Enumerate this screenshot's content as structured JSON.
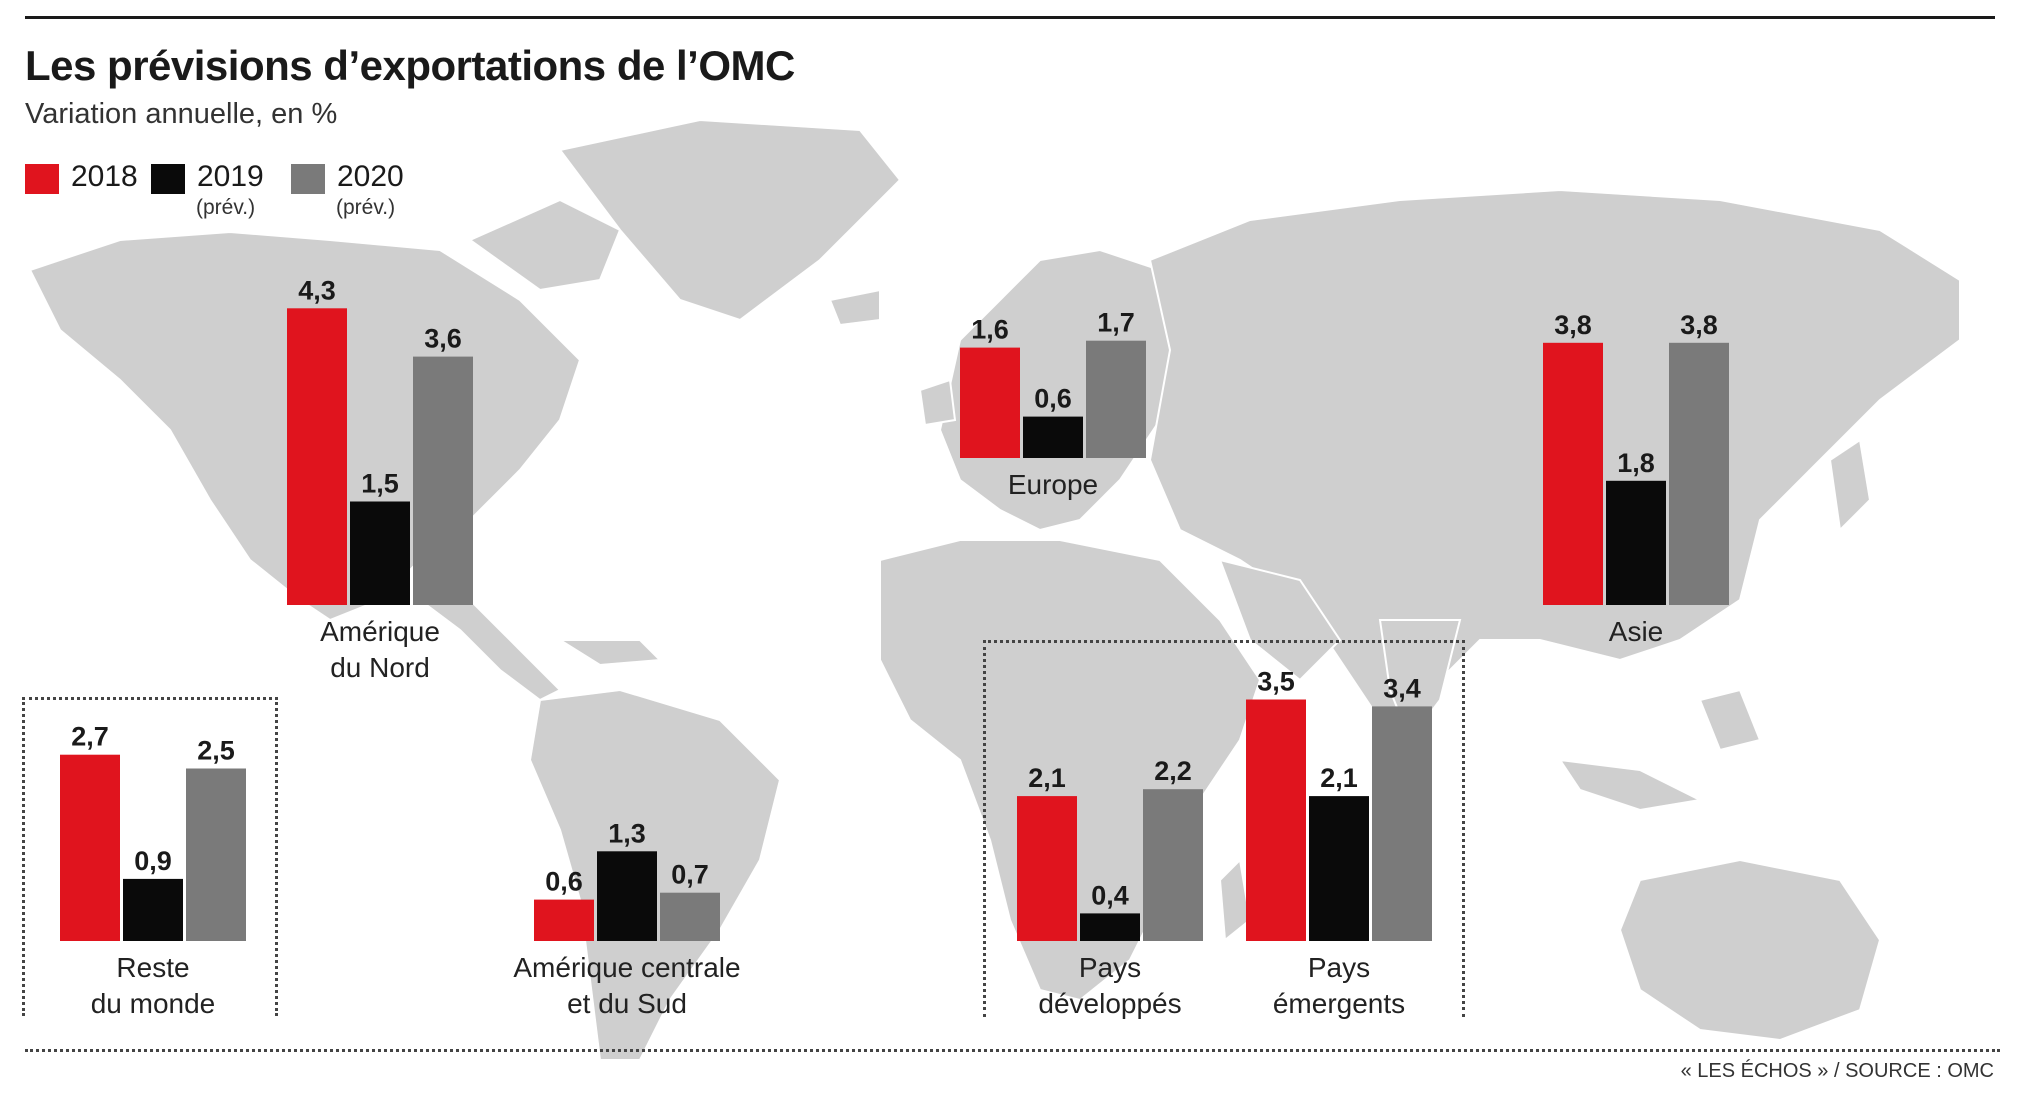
{
  "title": "Les prévisions d’exportations de l’OMC",
  "subtitle": "Variation annuelle, en %",
  "legend": [
    {
      "year": "2018",
      "note": "",
      "color": "#e0141e"
    },
    {
      "year": "2019",
      "note": "(prév.)",
      "color": "#0a0a0a"
    },
    {
      "year": "2020",
      "note": "(prév.)",
      "color": "#7a7a7a"
    }
  ],
  "source": "« LES ÉCHOS » / SOURCE : OMC",
  "chart_data": {
    "type": "bar",
    "series": [
      {
        "name": "2018",
        "color": "#e0141e"
      },
      {
        "name": "2019 (prév.)",
        "color": "#0a0a0a"
      },
      {
        "name": "2020 (prév.)",
        "color": "#7a7a7a"
      }
    ],
    "groups": [
      {
        "label": [
          "Amérique",
          "du Nord"
        ],
        "values": [
          4.3,
          1.5,
          3.6
        ],
        "labels": [
          "4,3",
          "1,5",
          "3,6"
        ]
      },
      {
        "label": [
          "Europe"
        ],
        "values": [
          1.6,
          0.6,
          1.7
        ],
        "labels": [
          "1,6",
          "0,6",
          "1,7"
        ]
      },
      {
        "label": [
          "Asie"
        ],
        "values": [
          3.8,
          1.8,
          3.8
        ],
        "labels": [
          "3,8",
          "1,8",
          "3,8"
        ]
      },
      {
        "label": [
          "Reste",
          "du monde"
        ],
        "values": [
          2.7,
          0.9,
          2.5
        ],
        "labels": [
          "2,7",
          "0,9",
          "2,5"
        ]
      },
      {
        "label": [
          "Amérique centrale",
          "et du Sud"
        ],
        "values": [
          0.6,
          1.3,
          0.7
        ],
        "labels": [
          "0,6",
          "1,3",
          "0,7"
        ]
      },
      {
        "label": [
          "Pays",
          "développés"
        ],
        "values": [
          2.1,
          0.4,
          2.2
        ],
        "labels": [
          "2,1",
          "0,4",
          "2,2"
        ]
      },
      {
        "label": [
          "Pays",
          "émergents"
        ],
        "values": [
          3.5,
          2.1,
          3.4
        ],
        "labels": [
          "3,5",
          "2,1",
          "3,4"
        ]
      }
    ]
  }
}
